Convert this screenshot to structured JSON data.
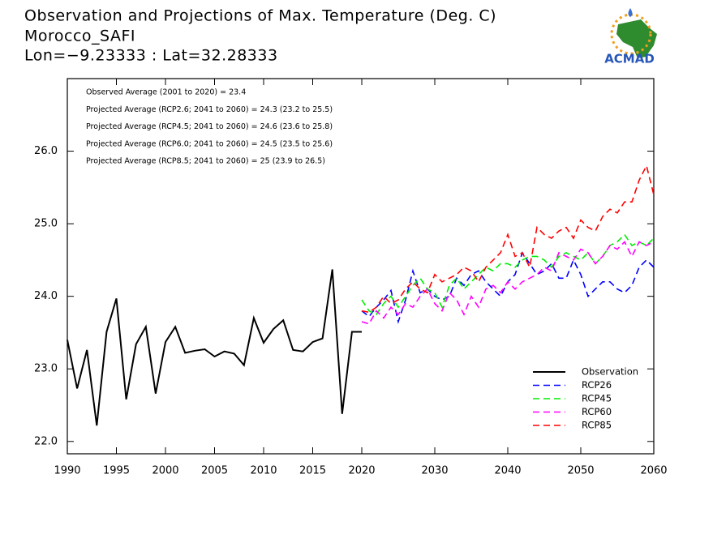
{
  "chart_data": {
    "type": "line",
    "title": "Observation and Projections of Max. Temperature (Deg. C)",
    "subtitle": "Morocco_SAFI",
    "location": "Lon=−9.23333 : Lat=32.28333",
    "logo_text": "ACMAD",
    "annotations": [
      "Observed Average (2001 to 2020) = 23.4",
      "Projected Average (RCP2.6; 2041 to 2060) = 24.3 (23.2 to 25.5)",
      "Projected Average (RCP4.5; 2041 to 2060) = 24.6 (23.6 to 25.8)",
      "Projected Average (RCP6.0; 2041 to 2060) = 24.5 (23.5 to 25.6)",
      "Projected Average (RCP8.5; 2041 to 2060) = 25 (23.9 to 26.5)"
    ],
    "xlim": [
      1990,
      2060
    ],
    "xticks": [
      1990,
      1995,
      2000,
      2005,
      2010,
      2015,
      2020,
      2030,
      2040,
      2050,
      2060
    ],
    "ylim": [
      21.83,
      27.0
    ],
    "yticks": [
      {
        "value": 22,
        "label": "22.0"
      },
      {
        "value": 23,
        "label": "23.0"
      },
      {
        "value": 24,
        "label": "24.0"
      },
      {
        "value": 25,
        "label": "25.0"
      },
      {
        "value": 26,
        "label": "26.0"
      }
    ],
    "legend": "lower right",
    "series": [
      {
        "name": "Observation",
        "color": "#000000",
        "dashed": false,
        "x": [
          1990,
          1991,
          1992,
          1993,
          1994,
          1995,
          1996,
          1997,
          1998,
          1999,
          2000,
          2001,
          2002,
          2003,
          2004,
          2005,
          2006,
          2007,
          2008,
          2009,
          2010,
          2011,
          2012,
          2013,
          2014,
          2015,
          2016,
          2017,
          2018,
          2019,
          2020
        ],
        "values": [
          23.4,
          22.73,
          23.26,
          22.22,
          23.51,
          23.97,
          22.58,
          23.34,
          23.58,
          22.66,
          23.37,
          23.58,
          23.22,
          23.25,
          23.27,
          23.17,
          23.24,
          23.21,
          23.05,
          23.7,
          23.36,
          23.55,
          23.67,
          23.26,
          23.24,
          23.37,
          23.42,
          24.37,
          22.38,
          23.51,
          23.51
        ]
      },
      {
        "name": "RCP26",
        "color": "#0000ff",
        "dashed": true,
        "x": [
          2020,
          2021,
          2022,
          2023,
          2024,
          2025,
          2026,
          2027,
          2028,
          2029,
          2030,
          2031,
          2032,
          2033,
          2034,
          2035,
          2036,
          2037,
          2038,
          2039,
          2040,
          2041,
          2042,
          2043,
          2044,
          2045,
          2046,
          2047,
          2048,
          2049,
          2050,
          2051,
          2052,
          2053,
          2054,
          2055,
          2056,
          2057,
          2058,
          2059,
          2060
        ],
        "values": [
          23.8,
          23.72,
          23.85,
          23.95,
          24.08,
          23.65,
          23.95,
          24.35,
          24.05,
          24.1,
          24.0,
          23.95,
          24.0,
          24.25,
          24.15,
          24.3,
          24.35,
          24.2,
          24.1,
          24.0,
          24.2,
          24.3,
          24.6,
          24.45,
          24.3,
          24.35,
          24.45,
          24.25,
          24.25,
          24.5,
          24.3,
          24.0,
          24.1,
          24.2,
          24.2,
          24.1,
          24.05,
          24.15,
          24.4,
          24.5,
          24.4
        ]
      },
      {
        "name": "RCP45",
        "color": "#00ee00",
        "dashed": true,
        "x": [
          2020,
          2021,
          2022,
          2023,
          2024,
          2025,
          2026,
          2027,
          2028,
          2029,
          2030,
          2031,
          2032,
          2033,
          2034,
          2035,
          2036,
          2037,
          2038,
          2039,
          2040,
          2041,
          2042,
          2043,
          2044,
          2045,
          2046,
          2047,
          2048,
          2049,
          2050,
          2051,
          2052,
          2053,
          2054,
          2055,
          2056,
          2057,
          2058,
          2059,
          2060
        ],
        "values": [
          23.95,
          23.8,
          23.75,
          23.9,
          24.0,
          23.85,
          24.0,
          24.15,
          24.25,
          24.1,
          24.05,
          23.85,
          24.15,
          24.25,
          24.1,
          24.2,
          24.3,
          24.4,
          24.35,
          24.45,
          24.45,
          24.4,
          24.5,
          24.55,
          24.55,
          24.5,
          24.4,
          24.55,
          24.6,
          24.55,
          24.5,
          24.6,
          24.45,
          24.55,
          24.7,
          24.75,
          24.85,
          24.7,
          24.75,
          24.7,
          24.8
        ]
      },
      {
        "name": "RCP60",
        "color": "#ff00ff",
        "dashed": true,
        "x": [
          2020,
          2021,
          2022,
          2023,
          2024,
          2025,
          2026,
          2027,
          2028,
          2029,
          2030,
          2031,
          2032,
          2033,
          2034,
          2035,
          2036,
          2037,
          2038,
          2039,
          2040,
          2041,
          2042,
          2043,
          2044,
          2045,
          2046,
          2047,
          2048,
          2049,
          2050,
          2051,
          2052,
          2053,
          2054,
          2055,
          2056,
          2057,
          2058,
          2059,
          2060
        ],
        "values": [
          23.65,
          23.62,
          23.8,
          23.7,
          23.85,
          23.75,
          23.9,
          23.85,
          24.0,
          24.1,
          23.9,
          23.8,
          24.05,
          23.95,
          23.75,
          24.0,
          23.85,
          24.1,
          24.15,
          24.05,
          24.2,
          24.1,
          24.2,
          24.25,
          24.3,
          24.4,
          24.35,
          24.6,
          24.55,
          24.5,
          24.65,
          24.6,
          24.45,
          24.55,
          24.7,
          24.65,
          24.75,
          24.55,
          24.75,
          24.7,
          24.75
        ]
      },
      {
        "name": "RCP85",
        "color": "#ff0000",
        "dashed": true,
        "x": [
          2020,
          2021,
          2022,
          2023,
          2024,
          2025,
          2026,
          2027,
          2028,
          2029,
          2030,
          2031,
          2032,
          2033,
          2034,
          2035,
          2036,
          2037,
          2038,
          2039,
          2040,
          2041,
          2042,
          2043,
          2044,
          2045,
          2046,
          2047,
          2048,
          2049,
          2050,
          2051,
          2052,
          2053,
          2054,
          2055,
          2056,
          2057,
          2058,
          2059,
          2060
        ],
        "values": [
          23.8,
          23.78,
          23.85,
          24.0,
          23.9,
          23.95,
          24.1,
          24.2,
          24.1,
          24.05,
          24.3,
          24.2,
          24.25,
          24.3,
          24.4,
          24.35,
          24.2,
          24.4,
          24.5,
          24.6,
          24.85,
          24.55,
          24.6,
          24.4,
          24.95,
          24.85,
          24.8,
          24.9,
          24.95,
          24.8,
          25.05,
          24.95,
          24.9,
          25.1,
          25.2,
          25.15,
          25.3,
          25.3,
          25.6,
          25.8,
          25.4
        ]
      }
    ]
  }
}
